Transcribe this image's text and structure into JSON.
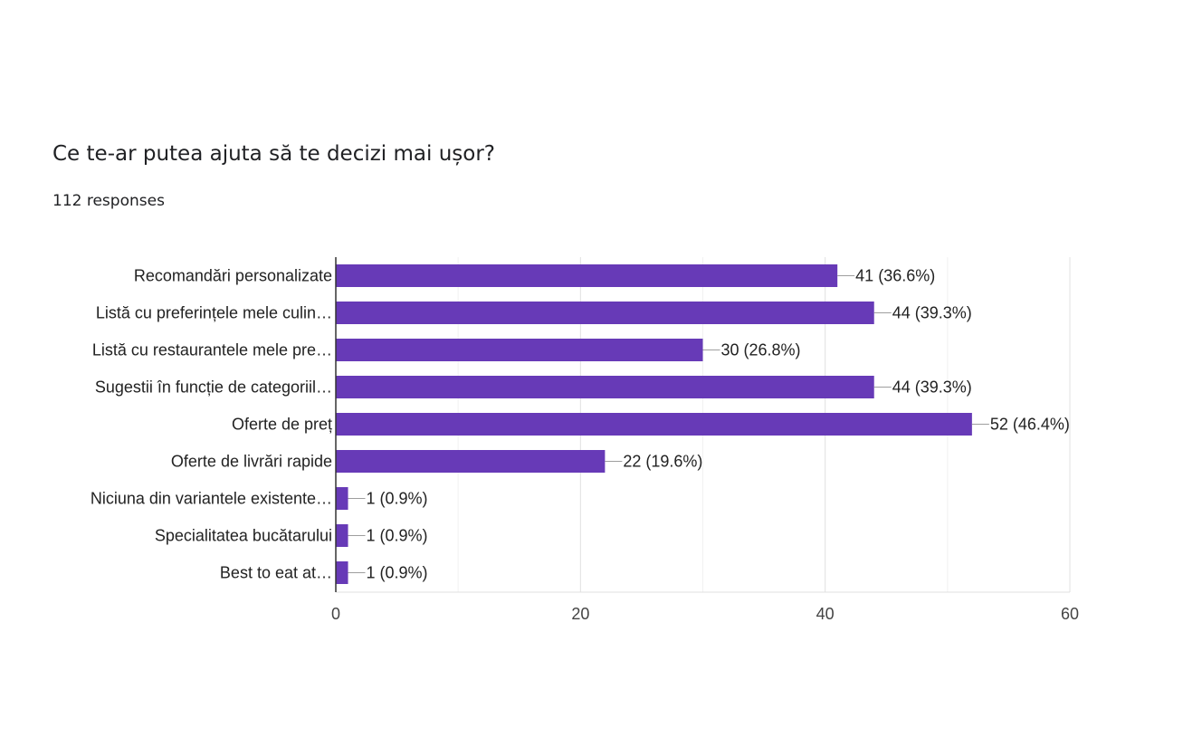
{
  "question": {
    "title": "Ce te-ar putea ajuta să te decizi mai ușor?",
    "responses": "112 responses"
  },
  "chart_data": {
    "type": "bar",
    "orientation": "horizontal",
    "categories": [
      "Recomandări personalizate",
      "Listă cu preferințele mele culin…",
      "Listă cu restaurantele mele pre…",
      "Sugestii în funcție de categoriil…",
      "Oferte de preț",
      "Oferte de livrări rapide",
      "Niciuna din variantele existente…",
      "Specialitatea bucătarului",
      "Best to eat at…"
    ],
    "values": [
      41,
      44,
      30,
      44,
      52,
      22,
      1,
      1,
      1
    ],
    "data_labels": [
      "41 (36.6%)",
      "44 (39.3%)",
      "30 (26.8%)",
      "44 (39.3%)",
      "52 (46.4%)",
      "22 (19.6%)",
      "1 (0.9%)",
      "1 (0.9%)",
      "1 (0.9%)"
    ],
    "xlim": [
      0,
      60
    ],
    "xticks": [
      0,
      20,
      40,
      60
    ],
    "grid": true,
    "bar_color": "#673ab7"
  }
}
